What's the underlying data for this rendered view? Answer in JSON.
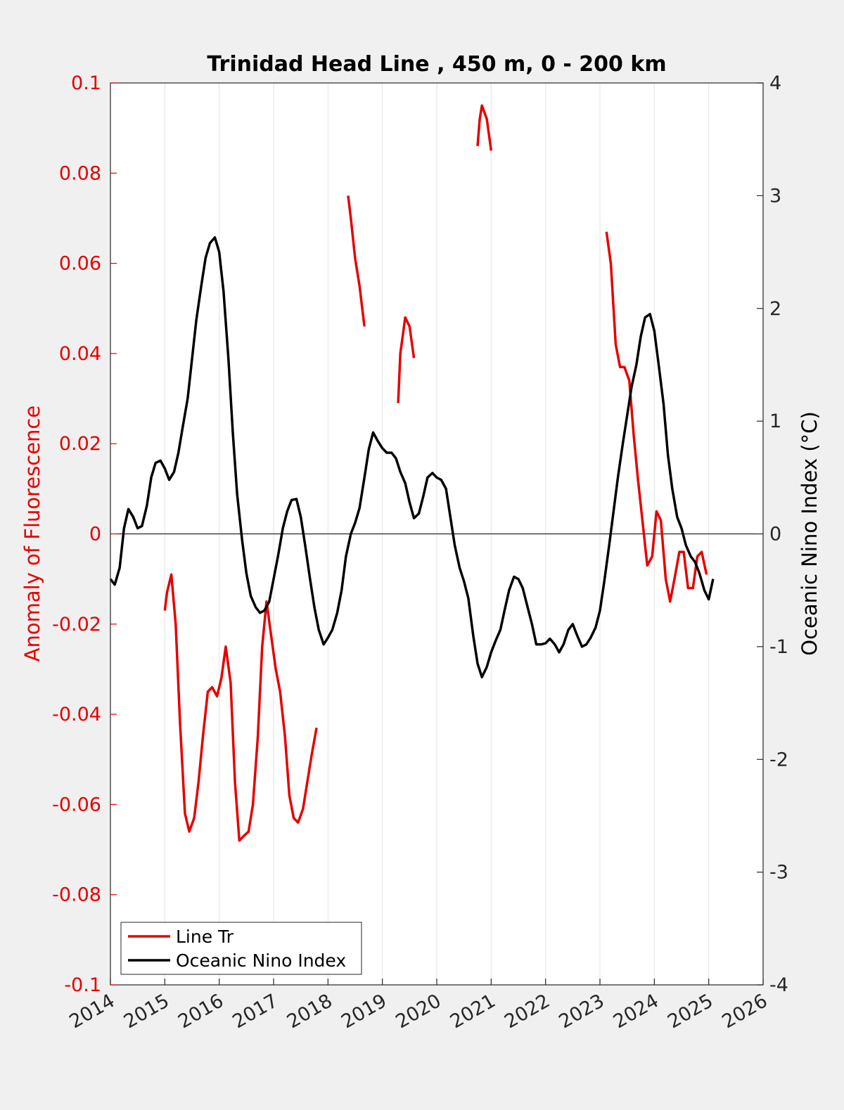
{
  "chart_data": {
    "type": "line",
    "title": "Trinidad Head Line , 450 m, 0 - 200 km",
    "xlim": [
      2014,
      2026
    ],
    "x_ticks": [
      "2014",
      "2015",
      "2016",
      "2017",
      "2018",
      "2019",
      "2020",
      "2021",
      "2022",
      "2023",
      "2024",
      "2025",
      "2026"
    ],
    "left_axis": {
      "label": "Anomaly of Fluorescence",
      "color": "#e60000",
      "ylim": [
        -0.1,
        0.1
      ],
      "ticks": [
        -0.1,
        -0.08,
        -0.06,
        -0.04,
        -0.02,
        0,
        0.02,
        0.04,
        0.06,
        0.08,
        0.1
      ],
      "tick_labels": [
        "-0.1",
        "-0.08",
        "-0.06",
        "-0.04",
        "-0.02",
        "0",
        "0.02",
        "0.04",
        "0.06",
        "0.08",
        "0.1"
      ]
    },
    "right_axis": {
      "label": "Oceanic Nino Index (°C)",
      "color": "#000000",
      "ylim": [
        -4,
        4
      ],
      "ticks": [
        -4,
        -3,
        -2,
        -1,
        0,
        1,
        2,
        3,
        4
      ],
      "tick_labels": [
        "-4",
        "-3",
        "-2",
        "-1",
        "0",
        "1",
        "2",
        "3",
        "4"
      ]
    },
    "grid": "vertical",
    "legend_position": "bottom-left",
    "series": [
      {
        "name": "Line Tr",
        "axis": "left",
        "color": "#e60000",
        "segments": [
          [
            [
              2015.0,
              -0.017
            ],
            [
              2015.04,
              -0.013
            ],
            [
              2015.12,
              -0.009
            ],
            [
              2015.2,
              -0.02
            ],
            [
              2015.28,
              -0.042
            ],
            [
              2015.37,
              -0.062
            ],
            [
              2015.45,
              -0.066
            ],
            [
              2015.54,
              -0.063
            ],
            [
              2015.62,
              -0.055
            ],
            [
              2015.7,
              -0.045
            ],
            [
              2015.79,
              -0.035
            ],
            [
              2015.87,
              -0.034
            ],
            [
              2015.96,
              -0.036
            ],
            [
              2016.04,
              -0.032
            ],
            [
              2016.12,
              -0.025
            ],
            [
              2016.21,
              -0.033
            ],
            [
              2016.29,
              -0.055
            ],
            [
              2016.37,
              -0.068
            ],
            [
              2016.45,
              -0.067
            ],
            [
              2016.54,
              -0.066
            ],
            [
              2016.62,
              -0.06
            ],
            [
              2016.71,
              -0.045
            ],
            [
              2016.79,
              -0.025
            ],
            [
              2016.87,
              -0.015
            ],
            [
              2016.96,
              -0.023
            ],
            [
              2017.04,
              -0.03
            ],
            [
              2017.12,
              -0.035
            ],
            [
              2017.21,
              -0.045
            ],
            [
              2017.29,
              -0.058
            ],
            [
              2017.37,
              -0.063
            ],
            [
              2017.45,
              -0.064
            ],
            [
              2017.54,
              -0.061
            ],
            [
              2017.62,
              -0.055
            ],
            [
              2017.7,
              -0.049
            ],
            [
              2017.79,
              -0.043
            ]
          ],
          [
            [
              2018.37,
              0.075
            ],
            [
              2018.42,
              0.07
            ],
            [
              2018.5,
              0.061
            ],
            [
              2018.58,
              0.055
            ],
            [
              2018.67,
              0.046
            ]
          ],
          [
            [
              2019.29,
              0.029
            ],
            [
              2019.33,
              0.04
            ],
            [
              2019.42,
              0.048
            ],
            [
              2019.5,
              0.046
            ],
            [
              2019.58,
              0.039
            ]
          ],
          [
            [
              2020.75,
              0.086
            ],
            [
              2020.79,
              0.092
            ],
            [
              2020.83,
              0.095
            ],
            [
              2020.92,
              0.092
            ],
            [
              2021.0,
              0.085
            ]
          ],
          [
            [
              2023.12,
              0.067
            ],
            [
              2023.2,
              0.06
            ],
            [
              2023.29,
              0.042
            ],
            [
              2023.37,
              0.037
            ],
            [
              2023.45,
              0.037
            ],
            [
              2023.54,
              0.034
            ],
            [
              2023.62,
              0.022
            ],
            [
              2023.7,
              0.012
            ],
            [
              2023.79,
              0.002
            ],
            [
              2023.87,
              -0.007
            ],
            [
              2023.96,
              -0.005
            ],
            [
              2024.04,
              0.005
            ],
            [
              2024.12,
              0.003
            ],
            [
              2024.21,
              -0.01
            ],
            [
              2024.29,
              -0.015
            ],
            [
              2024.37,
              -0.01
            ],
            [
              2024.46,
              -0.004
            ],
            [
              2024.54,
              -0.004
            ],
            [
              2024.62,
              -0.012
            ],
            [
              2024.71,
              -0.012
            ],
            [
              2024.79,
              -0.005
            ],
            [
              2024.87,
              -0.004
            ],
            [
              2024.96,
              -0.009
            ]
          ]
        ]
      },
      {
        "name": "Oceanic Nino Index",
        "axis": "right",
        "color": "#000000",
        "segments": [
          [
            [
              2014.0,
              -0.4
            ],
            [
              2014.08,
              -0.45
            ],
            [
              2014.17,
              -0.3
            ],
            [
              2014.25,
              0.05
            ],
            [
              2014.33,
              0.22
            ],
            [
              2014.42,
              0.15
            ],
            [
              2014.5,
              0.05
            ],
            [
              2014.58,
              0.07
            ],
            [
              2014.67,
              0.25
            ],
            [
              2014.75,
              0.5
            ],
            [
              2014.83,
              0.63
            ],
            [
              2014.92,
              0.65
            ],
            [
              2015.0,
              0.58
            ],
            [
              2015.08,
              0.48
            ],
            [
              2015.17,
              0.55
            ],
            [
              2015.25,
              0.72
            ],
            [
              2015.33,
              0.95
            ],
            [
              2015.42,
              1.2
            ],
            [
              2015.5,
              1.55
            ],
            [
              2015.58,
              1.9
            ],
            [
              2015.67,
              2.2
            ],
            [
              2015.75,
              2.45
            ],
            [
              2015.83,
              2.58
            ],
            [
              2015.92,
              2.63
            ],
            [
              2016.0,
              2.5
            ],
            [
              2016.08,
              2.15
            ],
            [
              2016.17,
              1.55
            ],
            [
              2016.25,
              0.9
            ],
            [
              2016.33,
              0.35
            ],
            [
              2016.42,
              -0.05
            ],
            [
              2016.5,
              -0.35
            ],
            [
              2016.58,
              -0.55
            ],
            [
              2016.67,
              -0.65
            ],
            [
              2016.75,
              -0.7
            ],
            [
              2016.83,
              -0.68
            ],
            [
              2016.92,
              -0.6
            ],
            [
              2017.0,
              -0.4
            ],
            [
              2017.08,
              -0.2
            ],
            [
              2017.17,
              0.05
            ],
            [
              2017.25,
              0.2
            ],
            [
              2017.33,
              0.3
            ],
            [
              2017.42,
              0.31
            ],
            [
              2017.5,
              0.15
            ],
            [
              2017.58,
              -0.1
            ],
            [
              2017.67,
              -0.4
            ],
            [
              2017.75,
              -0.65
            ],
            [
              2017.83,
              -0.85
            ],
            [
              2017.92,
              -0.98
            ],
            [
              2018.0,
              -0.92
            ],
            [
              2018.08,
              -0.85
            ],
            [
              2018.17,
              -0.7
            ],
            [
              2018.25,
              -0.5
            ],
            [
              2018.33,
              -0.2
            ],
            [
              2018.42,
              0.0
            ],
            [
              2018.5,
              0.1
            ],
            [
              2018.58,
              0.23
            ],
            [
              2018.67,
              0.5
            ],
            [
              2018.75,
              0.75
            ],
            [
              2018.83,
              0.9
            ],
            [
              2018.92,
              0.82
            ],
            [
              2019.0,
              0.76
            ],
            [
              2019.08,
              0.72
            ],
            [
              2019.17,
              0.72
            ],
            [
              2019.25,
              0.67
            ],
            [
              2019.33,
              0.55
            ],
            [
              2019.42,
              0.45
            ],
            [
              2019.5,
              0.28
            ],
            [
              2019.58,
              0.14
            ],
            [
              2019.67,
              0.18
            ],
            [
              2019.75,
              0.33
            ],
            [
              2019.83,
              0.5
            ],
            [
              2019.92,
              0.54
            ],
            [
              2020.0,
              0.5
            ],
            [
              2020.08,
              0.48
            ],
            [
              2020.17,
              0.4
            ],
            [
              2020.25,
              0.15
            ],
            [
              2020.33,
              -0.1
            ],
            [
              2020.42,
              -0.3
            ],
            [
              2020.5,
              -0.42
            ],
            [
              2020.58,
              -0.57
            ],
            [
              2020.67,
              -0.9
            ],
            [
              2020.75,
              -1.15
            ],
            [
              2020.83,
              -1.27
            ],
            [
              2020.92,
              -1.18
            ],
            [
              2021.0,
              -1.05
            ],
            [
              2021.08,
              -0.95
            ],
            [
              2021.17,
              -0.85
            ],
            [
              2021.25,
              -0.67
            ],
            [
              2021.33,
              -0.5
            ],
            [
              2021.42,
              -0.38
            ],
            [
              2021.5,
              -0.4
            ],
            [
              2021.58,
              -0.48
            ],
            [
              2021.67,
              -0.65
            ],
            [
              2021.75,
              -0.8
            ],
            [
              2021.83,
              -0.98
            ],
            [
              2021.92,
              -0.98
            ],
            [
              2022.0,
              -0.97
            ],
            [
              2022.08,
              -0.93
            ],
            [
              2022.17,
              -0.98
            ],
            [
              2022.25,
              -1.05
            ],
            [
              2022.33,
              -0.98
            ],
            [
              2022.42,
              -0.85
            ],
            [
              2022.5,
              -0.8
            ],
            [
              2022.58,
              -0.9
            ],
            [
              2022.67,
              -1.0
            ],
            [
              2022.75,
              -0.98
            ],
            [
              2022.83,
              -0.92
            ],
            [
              2022.92,
              -0.83
            ],
            [
              2023.0,
              -0.68
            ],
            [
              2023.08,
              -0.42
            ],
            [
              2023.17,
              -0.1
            ],
            [
              2023.25,
              0.2
            ],
            [
              2023.33,
              0.5
            ],
            [
              2023.42,
              0.8
            ],
            [
              2023.5,
              1.05
            ],
            [
              2023.58,
              1.3
            ],
            [
              2023.67,
              1.5
            ],
            [
              2023.75,
              1.75
            ],
            [
              2023.83,
              1.92
            ],
            [
              2023.92,
              1.95
            ],
            [
              2024.0,
              1.8
            ],
            [
              2024.08,
              1.5
            ],
            [
              2024.17,
              1.15
            ],
            [
              2024.25,
              0.7
            ],
            [
              2024.33,
              0.4
            ],
            [
              2024.42,
              0.15
            ],
            [
              2024.5,
              0.05
            ],
            [
              2024.58,
              -0.1
            ],
            [
              2024.67,
              -0.2
            ],
            [
              2024.75,
              -0.25
            ],
            [
              2024.83,
              -0.35
            ],
            [
              2024.92,
              -0.5
            ],
            [
              2025.0,
              -0.58
            ],
            [
              2025.08,
              -0.4
            ]
          ]
        ]
      }
    ]
  }
}
